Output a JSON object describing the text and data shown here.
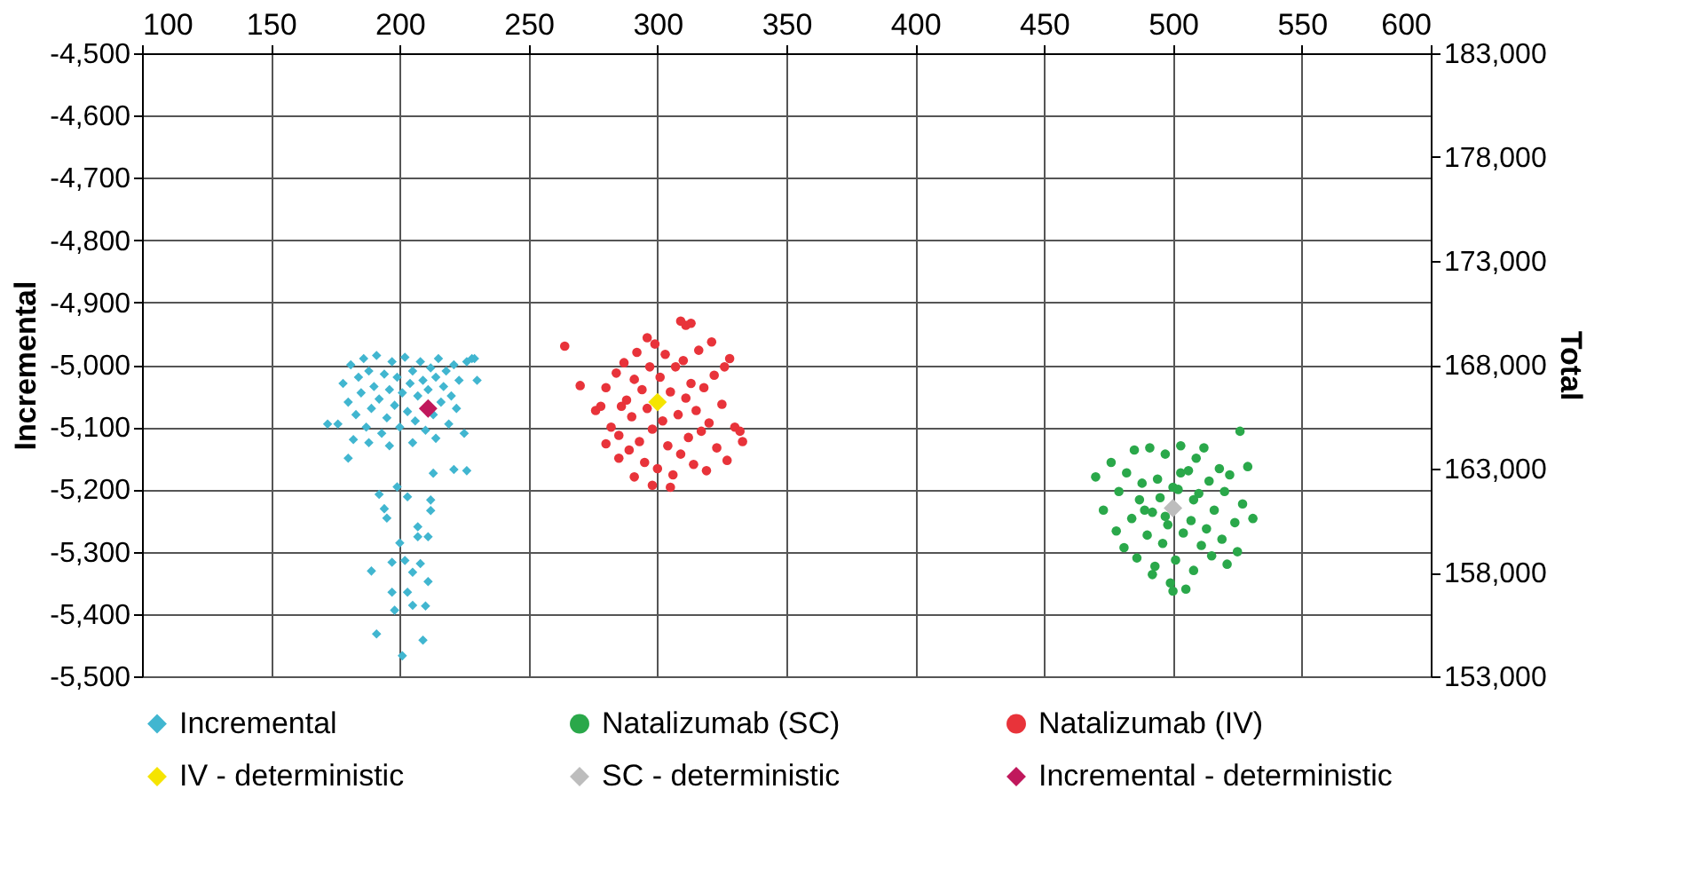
{
  "chart_data": {
    "type": "scatter",
    "xlim": [
      100,
      600
    ],
    "xticks": [
      100,
      150,
      200,
      250,
      300,
      350,
      400,
      450,
      500,
      550,
      600
    ],
    "ylim": [
      -5500,
      -4500
    ],
    "yticks": [
      {
        "value": -5500,
        "label": "-5,500"
      },
      {
        "value": -5400,
        "label": "-5,400"
      },
      {
        "value": -5300,
        "label": "-5,300"
      },
      {
        "value": -5200,
        "label": "-5,200"
      },
      {
        "value": -5100,
        "label": "-5,100"
      },
      {
        "value": -5000,
        "label": "-5,000"
      },
      {
        "value": -4900,
        "label": "-4,900"
      },
      {
        "value": -4800,
        "label": "-4,800"
      },
      {
        "value": -4700,
        "label": "-4,700"
      },
      {
        "value": -4600,
        "label": "-4,600"
      },
      {
        "value": -4500,
        "label": "-4,500"
      }
    ],
    "y2lim": [
      153000,
      183000
    ],
    "y2ticks": [
      {
        "value": 153000,
        "label": "153,000"
      },
      {
        "value": 158000,
        "label": "158,000"
      },
      {
        "value": 163000,
        "label": "163,000"
      },
      {
        "value": 168000,
        "label": "168,000"
      },
      {
        "value": 173000,
        "label": "173,000"
      },
      {
        "value": 178000,
        "label": "178,000"
      },
      {
        "value": 183000,
        "label": "183,000"
      }
    ],
    "ylabel": "Incremental",
    "y2label": "Total",
    "grid": true,
    "legend": "bottom",
    "series": [
      {
        "name": "Incremental",
        "color": "#41b6d0",
        "marker": "diamond",
        "x": [
          176,
          178,
          180,
          181,
          183,
          184,
          185,
          186,
          187,
          188,
          189,
          190,
          191,
          192,
          193,
          194,
          195,
          196,
          197,
          198,
          199,
          200,
          201,
          202,
          203,
          204,
          205,
          206,
          207,
          208,
          209,
          210,
          211,
          212,
          213,
          214,
          215,
          216,
          217,
          218,
          219,
          220,
          221,
          222,
          223,
          225,
          226,
          228,
          182,
          188,
          196,
          205,
          214,
          172,
          229,
          230,
          180,
          221,
          226,
          213,
          192,
          203,
          199,
          212,
          212,
          194,
          195,
          207,
          211,
          207,
          200,
          197,
          202,
          208,
          189,
          205,
          211,
          197,
          203,
          205,
          210,
          198,
          191,
          209,
          201
        ],
        "values": [
          -5095,
          -5030,
          -5060,
          -5000,
          -5080,
          -5020,
          -5045,
          -4990,
          -5100,
          -5010,
          -5070,
          -5035,
          -4985,
          -5055,
          -5110,
          -5015,
          -5085,
          -5040,
          -4995,
          -5065,
          -5020,
          -5100,
          -5045,
          -4988,
          -5075,
          -5030,
          -5010,
          -5090,
          -5050,
          -4995,
          -5025,
          -5105,
          -5040,
          -5005,
          -5080,
          -5020,
          -4990,
          -5060,
          -5035,
          -5010,
          -5095,
          -5050,
          -5000,
          -5070,
          -5025,
          -5110,
          -4995,
          -4990,
          -5120,
          -5125,
          -5130,
          -5125,
          -5118,
          -5095,
          -4990,
          -5025,
          -5150,
          -5168,
          -5170,
          -5174,
          -5208,
          -5212,
          -5196,
          -5217,
          -5234,
          -5231,
          -5246,
          -5260,
          -5276,
          -5276,
          -5286,
          -5317,
          -5314,
          -5319,
          -5331,
          -5333,
          -5348,
          -5365,
          -5365,
          -5386,
          -5387,
          -5394,
          -5432,
          -5442,
          -5467
        ]
      },
      {
        "name": "Natalizumab (SC)",
        "color": "#2aa84a",
        "marker": "circle",
        "axis": "y2",
        "x": [
          470,
          473,
          476,
          478,
          479,
          481,
          482,
          484,
          485,
          486,
          487,
          488,
          490,
          491,
          492,
          493,
          494,
          495,
          496,
          497,
          498,
          499,
          500,
          501,
          502,
          503,
          504,
          505,
          506,
          507,
          508,
          509,
          510,
          511,
          512,
          513,
          514,
          515,
          516,
          518,
          519,
          520,
          521,
          522,
          524,
          525,
          527,
          529,
          531,
          526,
          489,
          497,
          503,
          508,
          492,
          500
        ],
        "values": [
          162600,
          161000,
          163300,
          160000,
          161900,
          159200,
          162800,
          160600,
          163900,
          158700,
          161500,
          162300,
          159800,
          164000,
          160900,
          158300,
          162500,
          161600,
          159400,
          163700,
          160300,
          157500,
          162100,
          158600,
          162000,
          164100,
          159900,
          157200,
          162900,
          160500,
          158100,
          163500,
          161800,
          159300,
          164000,
          160100,
          162400,
          158800,
          161000,
          163000,
          159600,
          161900,
          158400,
          162700,
          160400,
          159000,
          161300,
          163100,
          160600,
          164800,
          161000,
          160700,
          162800,
          161500,
          157900,
          157100
        ]
      },
      {
        "name": "Natalizumab (IV)",
        "color": "#e8333a",
        "marker": "circle",
        "axis": "y2",
        "x": [
          264,
          270,
          276,
          280,
          282,
          284,
          285,
          287,
          288,
          289,
          290,
          291,
          292,
          293,
          294,
          295,
          296,
          297,
          298,
          299,
          286,
          300,
          301,
          302,
          303,
          304,
          305,
          306,
          307,
          308,
          309,
          310,
          311,
          312,
          313,
          314,
          315,
          316,
          317,
          318,
          319,
          320,
          322,
          323,
          325,
          327,
          328,
          330,
          333,
          332,
          311,
          309,
          313,
          298,
          305,
          291,
          285,
          280,
          321,
          296,
          278,
          326
        ],
        "values": [
          168900,
          167000,
          165800,
          166900,
          165000,
          167600,
          164600,
          168100,
          166300,
          163900,
          165500,
          167300,
          168600,
          164300,
          166800,
          163300,
          165900,
          167900,
          164900,
          169000,
          166000,
          163000,
          167400,
          165300,
          168500,
          164100,
          166700,
          162700,
          167900,
          165600,
          163700,
          168200,
          166400,
          164500,
          167100,
          163200,
          165800,
          168700,
          164800,
          166900,
          162900,
          165200,
          167500,
          164000,
          166100,
          163400,
          168300,
          165000,
          164300,
          164800,
          169900,
          170100,
          170000,
          162200,
          162100,
          162600,
          163500,
          164200,
          169100,
          169300,
          166000,
          167900
        ]
      },
      {
        "name": "IV - deterministic",
        "color": "#f5e400",
        "marker": "diamond",
        "axis": "y2",
        "x": [
          300
        ],
        "values": [
          166200
        ]
      },
      {
        "name": "SC - deterministic",
        "color": "#bdbdbd",
        "marker": "diamond",
        "axis": "y2",
        "x": [
          500
        ],
        "values": [
          161100
        ]
      },
      {
        "name": "Incremental - deterministic",
        "color": "#c0185c",
        "marker": "diamond",
        "x": [
          211
        ],
        "values": [
          -5070
        ]
      }
    ]
  }
}
